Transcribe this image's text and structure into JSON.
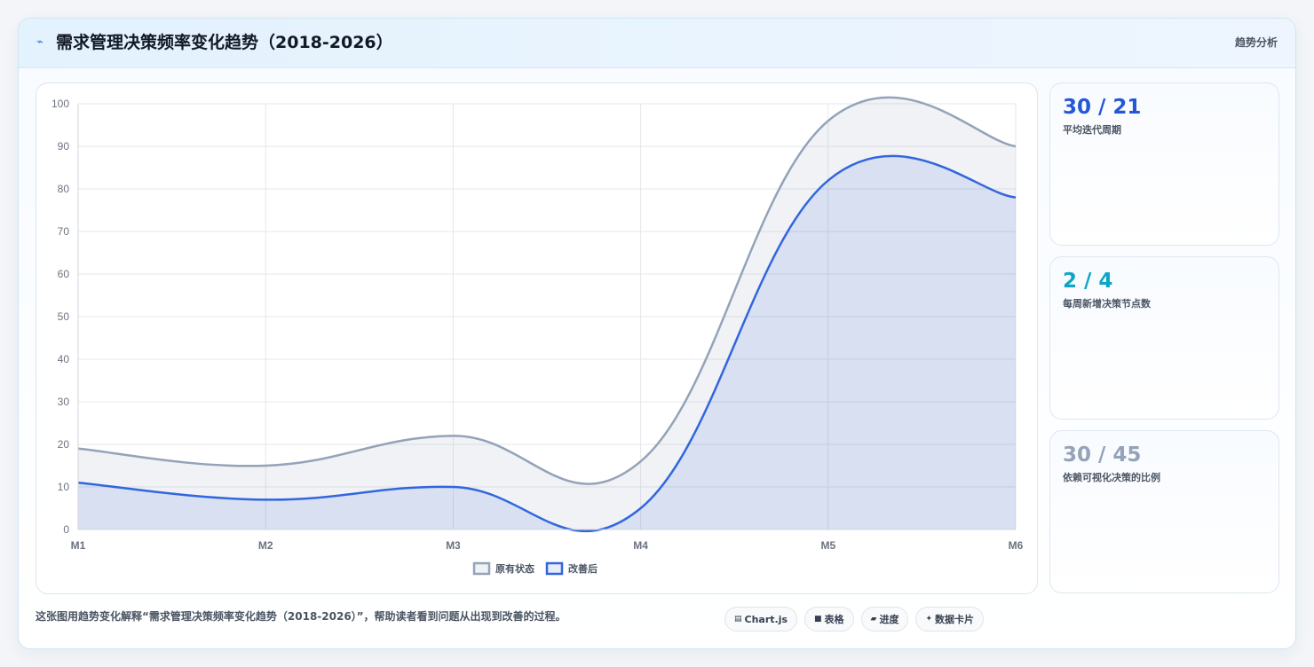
{
  "header": {
    "icon": "trend-icon",
    "title": "需求管理决策频率变化趋势（2018-2026）",
    "badge": "趋势分析"
  },
  "chart_data": {
    "type": "area",
    "categories": [
      "M1",
      "M2",
      "M3",
      "M4",
      "M5",
      "M6"
    ],
    "series": [
      {
        "name": "原有状态",
        "values": [
          19,
          15,
          22,
          16,
          96,
          90
        ],
        "color": "#94a3b8"
      },
      {
        "name": "改善后",
        "values": [
          11,
          7,
          10,
          5,
          82,
          78
        ],
        "color": "#3366dd"
      }
    ],
    "yticks": [
      0,
      10,
      20,
      30,
      40,
      50,
      60,
      70,
      80,
      90,
      100
    ],
    "ylim": [
      0,
      100
    ],
    "grid": true,
    "legend": "bottom",
    "smooth": true
  },
  "stats": [
    {
      "value": "30 / 21",
      "label": "平均迭代周期",
      "color": "#2457d6"
    },
    {
      "value": "2 / 4",
      "label": "每周新增决策节点数",
      "color": "#0ea5c6"
    },
    {
      "value": "30 / 45",
      "label": "依赖可视化决策的比例",
      "color": "#94a3b8"
    }
  ],
  "footer": {
    "note": "这张图用趋势变化解释“需求管理决策频率变化趋势（2018-2026）”，帮助读者看到问题从出现到改善的过程。",
    "chips": [
      {
        "icon": "chart-icon",
        "glyph": "▤",
        "label": "Chart.js"
      },
      {
        "icon": "table-icon",
        "glyph": "■",
        "label": "表格"
      },
      {
        "icon": "progress-icon",
        "glyph": "▰",
        "label": "进度"
      },
      {
        "icon": "sparkle-icon",
        "glyph": "✦",
        "label": "数据卡片"
      }
    ]
  }
}
